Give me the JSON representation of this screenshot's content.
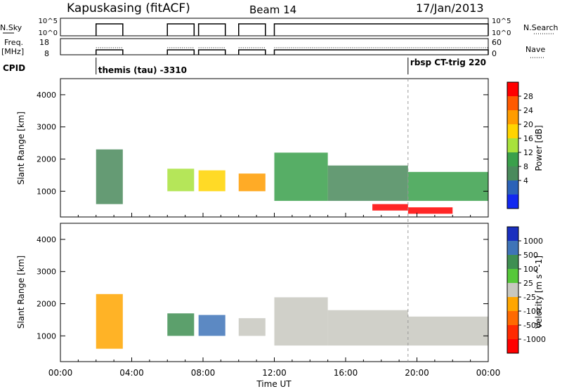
{
  "header": {
    "station": "Kapuskasing (fitACF)",
    "beam": "Beam 14",
    "date": "17/Jan/2013"
  },
  "top_panels": {
    "nsky_label": "N.Sky",
    "nsky_ticks": [
      "10^5",
      "10^0"
    ],
    "nsearch_label": "N.Search",
    "nsearch_ticks": [
      "10^5",
      "10^0"
    ],
    "freq_label_line1": "Freq.",
    "freq_label_line2": "[MHz]",
    "freq_ticks": [
      "18",
      "8"
    ],
    "nave_label": "Nave",
    "nave_ticks": [
      "60",
      "0"
    ],
    "cpid_label": "CPID",
    "cpid_entries": [
      {
        "text": "themis (tau) -3310",
        "start_hour": 2.0
      },
      {
        "text": "rbsp CT-trig 220",
        "start_hour": 19.5
      }
    ],
    "on_intervals_hours": [
      [
        2.0,
        3.5
      ],
      [
        6.0,
        7.5
      ],
      [
        7.75,
        9.25
      ],
      [
        10.0,
        11.5
      ],
      [
        12.0,
        24.0
      ]
    ]
  },
  "chart_data": [
    {
      "type": "heatmap",
      "name": "power",
      "ylabel": "Slant Range [km]",
      "xlabel": "Time UT",
      "x_ticks": [
        "00:00",
        "04:00",
        "08:00",
        "12:00",
        "16:00",
        "20:00",
        "00:00"
      ],
      "x_tick_hours": [
        0,
        4,
        8,
        12,
        16,
        20,
        24
      ],
      "ylim": [
        200,
        4500
      ],
      "y_ticks": [
        1000,
        2000,
        3000,
        4000
      ],
      "colorbar_label": "Power [dB]",
      "colorbar_ticks": [
        "28",
        "24",
        "20",
        "16",
        "12",
        "8",
        "4"
      ],
      "colorbar_colors": [
        "#ff0000",
        "#ff5a00",
        "#ff9c00",
        "#ffd400",
        "#a8e23c",
        "#3aa04b",
        "#4a8a5c",
        "#2b62b8",
        "#1228f0"
      ],
      "cells": [
        {
          "t0": 2.0,
          "t1": 3.5,
          "r0": 600,
          "r1": 2300,
          "level": 8
        },
        {
          "t0": 6.0,
          "t1": 7.5,
          "r0": 1000,
          "r1": 1700,
          "level": 14
        },
        {
          "t0": 7.75,
          "t1": 9.25,
          "r0": 1000,
          "r1": 1650,
          "level": 18
        },
        {
          "t0": 10.0,
          "t1": 11.5,
          "r0": 1000,
          "r1": 1550,
          "level": 20
        },
        {
          "t0": 12.0,
          "t1": 15.0,
          "r0": 700,
          "r1": 2200,
          "level": 12
        },
        {
          "t0": 15.0,
          "t1": 19.5,
          "r0": 700,
          "r1": 1800,
          "level": 8
        },
        {
          "t0": 17.5,
          "t1": 19.5,
          "r0": 400,
          "r1": 600,
          "level": 28
        },
        {
          "t0": 19.5,
          "t1": 22.0,
          "r0": 300,
          "r1": 500,
          "level": 28
        },
        {
          "t0": 19.5,
          "t1": 24.0,
          "r0": 700,
          "r1": 1600,
          "level": 12
        }
      ]
    },
    {
      "type": "heatmap",
      "name": "velocity",
      "ylabel": "Slant Range [km]",
      "xlabel": "Time UT",
      "x_ticks": [
        "00:00",
        "04:00",
        "08:00",
        "12:00",
        "16:00",
        "20:00",
        "00:00"
      ],
      "x_tick_hours": [
        0,
        4,
        8,
        12,
        16,
        20,
        24
      ],
      "ylim": [
        200,
        4500
      ],
      "y_ticks": [
        1000,
        2000,
        3000,
        4000
      ],
      "colorbar_label": "Velocity [m s^-1]",
      "colorbar_ticks": [
        "1000",
        "500",
        "100",
        "25",
        "-25",
        "-100",
        "-500",
        "-1000"
      ],
      "colorbar_colors": [
        "#1a2fbf",
        "#3f74b8",
        "#3f8f52",
        "#56c83a",
        "#c8c8c0",
        "#ffa600",
        "#ff6a00",
        "#ff2a00",
        "#ff0000"
      ],
      "cells": [
        {
          "t0": 2.0,
          "t1": 3.5,
          "r0": 600,
          "r1": 2300,
          "level": -100
        },
        {
          "t0": 6.0,
          "t1": 7.5,
          "r0": 1000,
          "r1": 1700,
          "level": 100
        },
        {
          "t0": 7.75,
          "t1": 9.25,
          "r0": 1000,
          "r1": 1650,
          "level": 500
        },
        {
          "t0": 10.0,
          "t1": 11.5,
          "r0": 1000,
          "r1": 1550,
          "level": 0
        },
        {
          "t0": 12.0,
          "t1": 15.0,
          "r0": 700,
          "r1": 2200,
          "level": 0
        },
        {
          "t0": 15.0,
          "t1": 19.5,
          "r0": 700,
          "r1": 1800,
          "level": 0
        },
        {
          "t0": 19.5,
          "t1": 24.0,
          "r0": 700,
          "r1": 1600,
          "level": 0
        }
      ]
    }
  ]
}
